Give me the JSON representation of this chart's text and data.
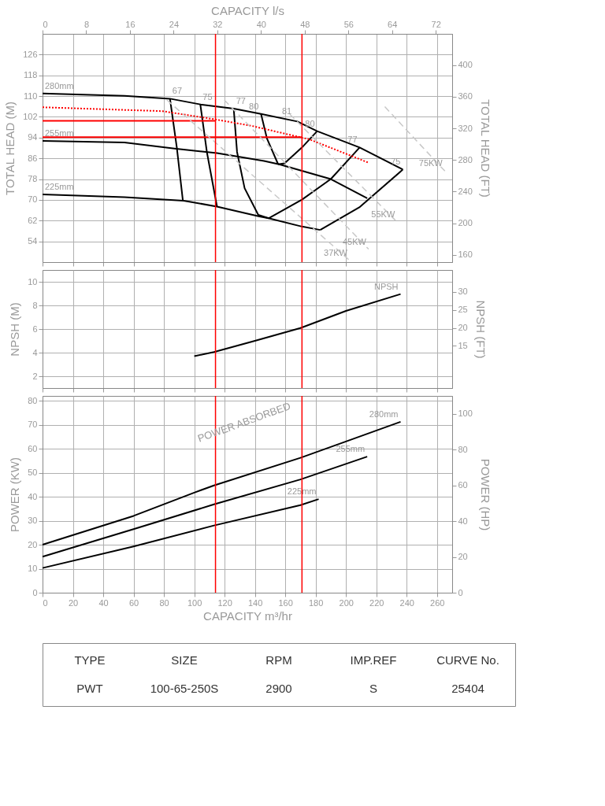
{
  "chart_data": [
    {
      "type": "line",
      "ylabel": "TOTAL HEAD (M)",
      "y2label": "TOTAL HEAD (FT)",
      "x2label": "CAPACITY l/s",
      "xlim": [
        0,
        270
      ],
      "xticks": [
        0,
        20,
        40,
        60,
        80,
        100,
        120,
        140,
        160,
        180,
        200,
        220,
        240,
        260
      ],
      "tick_labels": "y",
      "x2lim": [
        0,
        75
      ],
      "x2ticks": [
        0,
        8,
        16,
        24,
        32,
        40,
        48,
        56,
        64,
        72
      ],
      "ylim": [
        46,
        134
      ],
      "yticks": [
        54,
        62,
        70,
        78,
        86,
        94,
        102,
        110,
        118,
        126
      ],
      "y2lim": [
        150.9,
        439.6
      ],
      "y2ticks": [
        160,
        200,
        240,
        280,
        320,
        360,
        400
      ],
      "grid": true,
      "marker": "none",
      "series": [
        {
          "name": "280mm",
          "color": "#000000",
          "line_style": "solid",
          "x": [
            237.5,
            209,
            181,
            168,
            144,
            126,
            104,
            84,
            54,
            0
          ],
          "values": [
            81.7,
            90.2,
            96.5,
            100.2,
            103.1,
            105.2,
            106.8,
            109,
            110.1,
            111
          ]
        },
        {
          "name": "255mm",
          "color": "#000000",
          "line_style": "solid",
          "x": [
            214,
            190,
            156,
            146,
            115,
            87,
            54,
            0
          ],
          "values": [
            70.6,
            78,
            83.7,
            85,
            88,
            89.8,
            92.1,
            92.7
          ]
        },
        {
          "name": "225mm",
          "color": "#000000",
          "line_style": "solid",
          "x": [
            183,
            171,
            149,
            143,
            115,
            93,
            54,
            0
          ],
          "values": [
            58.4,
            59.7,
            62.9,
            63.6,
            67.4,
            69.7,
            71,
            72.1
          ]
        },
        {
          "name": "67",
          "color": "#000000",
          "line_style": "solid",
          "x": [
            92.5,
            88.5,
            84
          ],
          "values": [
            69.7,
            90.2,
            109
          ]
        },
        {
          "name": "75",
          "color": "#000000",
          "line_style": "solid",
          "x": [
            115,
            108.3,
            104
          ],
          "values": [
            67.4,
            88.5,
            106.8
          ]
        },
        {
          "name": "77",
          "color": "#000000",
          "line_style": "solid",
          "x": [
            149,
            142.2,
            133.2,
            128.2,
            126
          ],
          "values": [
            62.9,
            64.2,
            74.5,
            88.5,
            105.2
          ]
        },
        {
          "name": "80",
          "color": "#000000",
          "line_style": "solid",
          "x": [
            155.3,
            147.9,
            144
          ],
          "values": [
            83.7,
            93.7,
            103.1
          ]
        },
        {
          "name": "80",
          "color": "#000000",
          "line_style": "solid",
          "x": [
            155.3,
            159.5,
            171,
            181
          ],
          "values": [
            83.7,
            84.1,
            90.2,
            96.5
          ]
        },
        {
          "name": "77",
          "color": "#000000",
          "line_style": "solid",
          "x": [
            149,
            171,
            190,
            209
          ],
          "values": [
            62.9,
            70.1,
            78,
            90.2
          ]
        },
        {
          "name": "75",
          "color": "#000000",
          "line_style": "solid",
          "x": [
            183,
            208.8,
            237.5
          ],
          "values": [
            58.4,
            67.1,
            81.7
          ]
        },
        {
          "color": "#ff0000",
          "line_style": "dotted",
          "x": [
            0,
            79,
            113,
            138,
            176,
            215
          ],
          "values": [
            105.7,
            104.2,
            101.1,
            98.5,
            93.3,
            84.3
          ]
        },
        {
          "color": "#ff0000",
          "line_style": "solid",
          "x": [
            0,
            114
          ],
          "values": [
            100.5,
            100.5
          ]
        },
        {
          "color": "#ff0000",
          "line_style": "solid",
          "x": [
            0,
            171
          ],
          "values": [
            94.2,
            94.2
          ]
        },
        {
          "name": "75KW",
          "color": "#c8c8c8",
          "line_style": "dashed",
          "x": [
            225.6,
            265.2
          ],
          "values": [
            105.9,
            81.1
          ]
        },
        {
          "name": "55KW",
          "color": "#c8c8c8",
          "line_style": "dashed",
          "x": [
            163,
            233.8
          ],
          "values": [
            103,
            61.4
          ]
        },
        {
          "name": "45KW",
          "color": "#c8c8c8",
          "line_style": "dashed",
          "x": [
            119.8,
            214.9
          ],
          "values": [
            108.5,
            51
          ]
        },
        {
          "name": "37KW",
          "color": "#c8c8c8",
          "line_style": "dashed",
          "x": [
            82,
            202.5
          ],
          "values": [
            108.5,
            46.6
          ]
        }
      ],
      "ref_lines": [
        {
          "axis": "x",
          "value": 114,
          "color": "#ff0000"
        },
        {
          "axis": "x",
          "value": 171,
          "color": "#ff0000"
        }
      ],
      "annotations": [
        {
          "text": "81",
          "x": 161,
          "y": 101.2
        }
      ]
    },
    {
      "type": "line",
      "ylabel": "NPSH (M)",
      "y2label": "NPSH (FT)",
      "xlim": [
        0,
        270
      ],
      "xticks": [
        0,
        20,
        40,
        60,
        80,
        100,
        120,
        140,
        160,
        180,
        200,
        220,
        240,
        260
      ],
      "tick_labels": "y",
      "ylim": [
        1,
        11
      ],
      "yticks": [
        2,
        4,
        6,
        8,
        10
      ],
      "y2lim": [
        3.28,
        36.09
      ],
      "y2ticks": [
        15,
        20,
        25,
        30
      ],
      "grid": true,
      "marker": "none",
      "series": [
        {
          "name": "NPSH",
          "color": "#000000",
          "line_style": "solid",
          "x": [
            100,
            113,
            140,
            170,
            200,
            236
          ],
          "values": [
            3.7,
            4.05,
            5.0,
            6.08,
            7.53,
            8.96
          ]
        }
      ],
      "ref_lines": [
        {
          "axis": "x",
          "value": 114,
          "color": "#ff0000"
        },
        {
          "axis": "x",
          "value": 171,
          "color": "#ff0000"
        }
      ]
    },
    {
      "type": "line",
      "ylabel": "POWER (KW)",
      "y2label": "POWER (HP)",
      "xlabel": "CAPACITY m³/hr",
      "xlim": [
        0,
        270
      ],
      "xticks": [
        0,
        20,
        40,
        60,
        80,
        100,
        120,
        140,
        160,
        180,
        200,
        220,
        240,
        260
      ],
      "ylim": [
        0,
        82
      ],
      "yticks": [
        0,
        10,
        20,
        30,
        40,
        50,
        60,
        70,
        80
      ],
      "y2lim": [
        0,
        109.96
      ],
      "y2ticks": [
        0,
        20,
        40,
        60,
        80,
        100
      ],
      "grid": true,
      "marker": "none",
      "series": [
        {
          "name": "280mm",
          "color": "#000000",
          "line_style": "solid",
          "x": [
            0,
            60,
            100,
            113,
            170,
            200,
            236
          ],
          "values": [
            20,
            32,
            41.7,
            44.7,
            56.2,
            63,
            71.2
          ]
        },
        {
          "name": "255mm",
          "color": "#000000",
          "line_style": "solid",
          "x": [
            0,
            60,
            113,
            170,
            214
          ],
          "values": [
            15,
            26.5,
            36.8,
            47.2,
            56.7
          ]
        },
        {
          "name": "225mm",
          "color": "#000000",
          "line_style": "solid",
          "x": [
            0,
            60,
            113,
            170,
            182
          ],
          "values": [
            10.3,
            19.3,
            28,
            36.5,
            39
          ]
        }
      ],
      "ref_lines": [
        {
          "axis": "x",
          "value": 114,
          "color": "#ff0000"
        },
        {
          "axis": "x",
          "value": 171,
          "color": "#ff0000"
        }
      ],
      "annotations": [
        "POWER ABSORBED"
      ]
    },
    {
      "type": "other",
      "annotations": [
        "TYPE",
        "PWT",
        "SIZE",
        "100-65-250S",
        "RPM",
        "2900",
        "IMP.REF",
        "S",
        "CURVE No.",
        "25404"
      ]
    }
  ]
}
